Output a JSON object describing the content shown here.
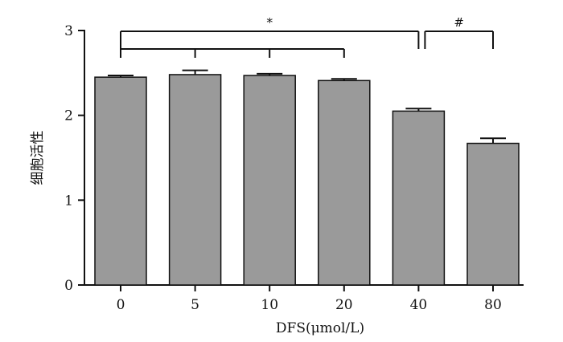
{
  "chart_data": {
    "type": "bar",
    "xlabel": "DFS(μmol/L)",
    "ylabel": "细胞活性",
    "categories": [
      "0",
      "5",
      "10",
      "20",
      "40",
      "80"
    ],
    "values": [
      2.45,
      2.48,
      2.47,
      2.41,
      2.05,
      1.67
    ],
    "errors": [
      0.02,
      0.05,
      0.02,
      0.02,
      0.03,
      0.06
    ],
    "ylim": [
      0,
      3
    ],
    "yticks": [
      "0",
      "1",
      "2",
      "3"
    ],
    "grid": false,
    "bar_color": "#9a9a9a",
    "significance": [
      {
        "label": "*",
        "reference": "0",
        "compared": [
          "5",
          "10",
          "20",
          "40"
        ]
      },
      {
        "label": "#",
        "reference": "40",
        "compared": [
          "80"
        ]
      }
    ]
  }
}
